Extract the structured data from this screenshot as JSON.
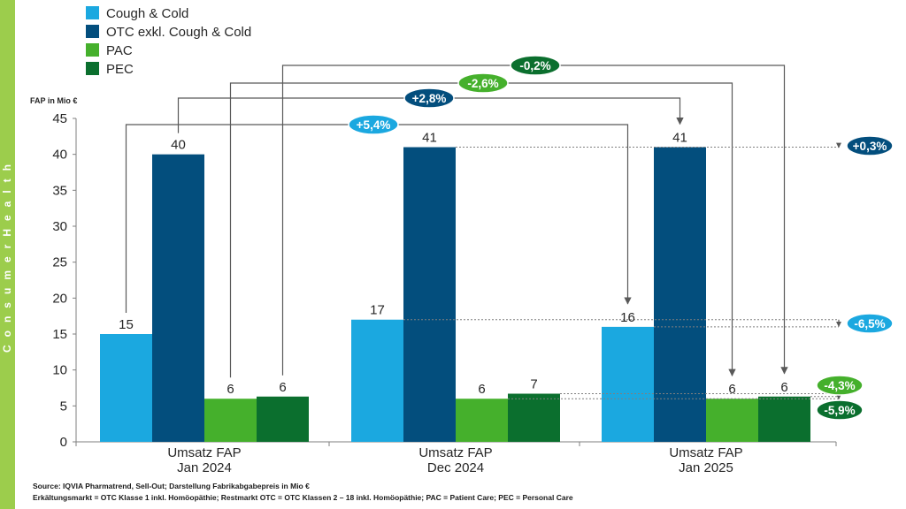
{
  "sidebar": {
    "text": "ConsumerHealth",
    "color": "#9ccd4c"
  },
  "colors": {
    "cough_cold": "#1ba8e0",
    "otc": "#034e7d",
    "pac": "#45b02c",
    "pec": "#0b6f2e",
    "arrow": "#595959"
  },
  "chart_data": {
    "type": "bar",
    "ylabel": "FAP in Mio €",
    "ylim": [
      0,
      45
    ],
    "yticks": [
      0,
      5,
      10,
      15,
      20,
      25,
      30,
      35,
      40,
      45
    ],
    "categories": [
      [
        "Umsatz FAP",
        "Jan 2024"
      ],
      [
        "Umsatz FAP",
        "Dec 2024"
      ],
      [
        "Umsatz FAP",
        "Jan 2025"
      ]
    ],
    "legend_position": "top-left",
    "series": [
      {
        "name": "Cough & Cold",
        "values": [
          15,
          17,
          16
        ],
        "labels": [
          "15",
          "17",
          "16"
        ],
        "color": "#1ba8e0"
      },
      {
        "name": "OTC exkl. Cough & Cold",
        "values": [
          40,
          41,
          41
        ],
        "labels": [
          "40",
          "41",
          "41"
        ],
        "color": "#034e7d"
      },
      {
        "name": "PAC",
        "values": [
          6,
          6,
          6
        ],
        "labels": [
          "6",
          "6",
          "6"
        ],
        "color": "#45b02c"
      },
      {
        "name": "PEC",
        "values": [
          6.3,
          6.7,
          6.3
        ],
        "labels": [
          "6",
          "7",
          "6"
        ],
        "color": "#0b6f2e"
      }
    ],
    "annotations": {
      "yoy": [
        {
          "text": "+5,4%",
          "series": 0,
          "color": "#1ba8e0"
        },
        {
          "text": "+2,8%",
          "series": 1,
          "color": "#034e7d"
        },
        {
          "text": "-2,6%",
          "series": 2,
          "color": "#45b02c"
        },
        {
          "text": "-0,2%",
          "series": 3,
          "color": "#0b6f2e"
        }
      ],
      "mom": [
        {
          "text": "+0,3%",
          "series": 1,
          "color": "#034e7d"
        },
        {
          "text": "-6,5%",
          "series": 0,
          "color": "#1ba8e0"
        },
        {
          "text": "-4,3%",
          "series": 2,
          "color": "#45b02c"
        },
        {
          "text": "-5,9%",
          "series": 3,
          "color": "#0b6f2e"
        }
      ]
    }
  },
  "footnotes": {
    "source": "Source: IQVIA Pharmatrend, Sell-Out; Darstellung Fabrikabgabepreis in Mio €",
    "definitions": "Erkältungsmarkt = OTC Klasse 1 inkl. Homöopäthie; Restmarkt OTC = OTC Klassen 2 – 18 inkl. Homöopäthie; PAC = Patient Care; PEC = Personal Care"
  }
}
